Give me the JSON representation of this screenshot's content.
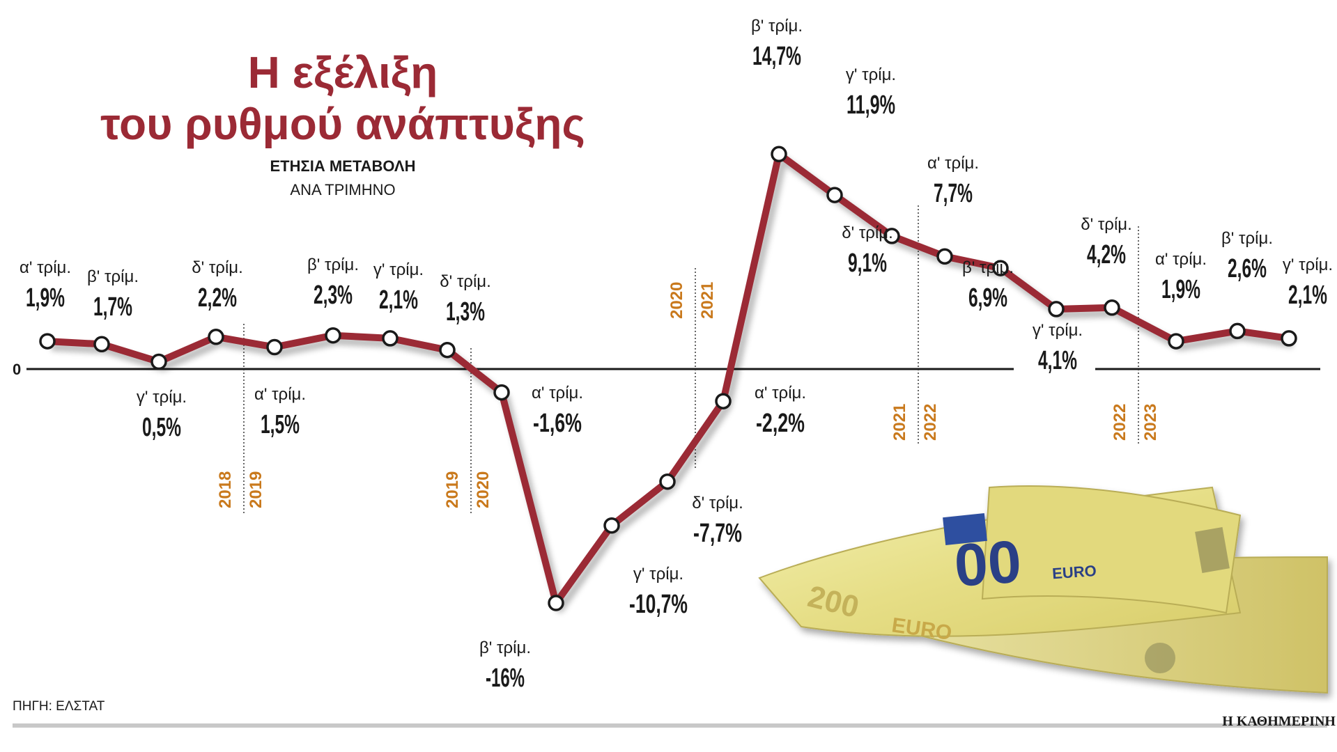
{
  "header": {
    "title_line1": "Η εξέλιξη",
    "title_line2": "του ρυθμού ανάπτυξης",
    "subtitle_line1": "ΕΤΗΣΙΑ ΜΕΤΑΒΟΛΗ",
    "subtitle_line2": "ΑΝΑ ΤΡΙΜΗΝΟ"
  },
  "footer": {
    "source": "ΠΗΓΗ: ΕΛΣΤΑΤ",
    "brand": "Η ΚΑΘΗΜΕΡΙΝΗ"
  },
  "colors": {
    "line": "#9b2a35",
    "title": "#9b2a35",
    "year": "#c9791c",
    "axis": "#1a1a1a"
  },
  "chart_data": {
    "type": "line",
    "title": "Η εξέλιξη του ρυθμού ανάπτυξης",
    "subtitle": "ΕΤΗΣΙΑ ΜΕΤΑΒΟΛΗ ΑΝΑ ΤΡΙΜΗΝΟ",
    "zero_label": "0",
    "grid": false,
    "points": [
      {
        "quarter": "α' τρίμ.",
        "value": 1.9,
        "label": "1,9%"
      },
      {
        "quarter": "β' τρίμ.",
        "value": 1.7,
        "label": "1,7%"
      },
      {
        "quarter": "γ' τρίμ.",
        "value": 0.5,
        "label": "0,5%"
      },
      {
        "quarter": "δ' τρίμ.",
        "value": 2.2,
        "label": "2,2%"
      },
      {
        "quarter": "α' τρίμ.",
        "value": 1.5,
        "label": "1,5%"
      },
      {
        "quarter": "β' τρίμ.",
        "value": 2.3,
        "label": "2,3%"
      },
      {
        "quarter": "γ' τρίμ.",
        "value": 2.1,
        "label": "2,1%"
      },
      {
        "quarter": "δ' τρίμ.",
        "value": 1.3,
        "label": "1,3%"
      },
      {
        "quarter": "α' τρίμ.",
        "value": -1.6,
        "label": "-1,6%"
      },
      {
        "quarter": "β' τρίμ.",
        "value": -16,
        "label": "-16%"
      },
      {
        "quarter": "γ' τρίμ.",
        "value": -10.7,
        "label": "-10,7%"
      },
      {
        "quarter": "δ' τρίμ.",
        "value": -7.7,
        "label": "-7,7%"
      },
      {
        "quarter": "α' τρίμ.",
        "value": -2.2,
        "label": "-2,2%"
      },
      {
        "quarter": "β' τρίμ.",
        "value": 14.7,
        "label": "14,7%"
      },
      {
        "quarter": "γ' τρίμ.",
        "value": 11.9,
        "label": "11,9%"
      },
      {
        "quarter": "δ' τρίμ.",
        "value": 9.1,
        "label": "9,1%"
      },
      {
        "quarter": "α' τρίμ.",
        "value": 7.7,
        "label": "7,7%"
      },
      {
        "quarter": "β' τρίμ.",
        "value": 6.9,
        "label": "6,9%"
      },
      {
        "quarter": "γ' τρίμ.",
        "value": 4.1,
        "label": "4,1%"
      },
      {
        "quarter": "δ' τρίμ.",
        "value": 4.2,
        "label": "4,2%"
      },
      {
        "quarter": "α' τρίμ.",
        "value": 1.9,
        "label": "1,9%"
      },
      {
        "quarter": "β' τρίμ.",
        "value": 2.6,
        "label": "2,6%"
      },
      {
        "quarter": "γ' τρίμ.",
        "value": 2.1,
        "label": "2,1%"
      }
    ],
    "year_boundaries": [
      {
        "after_index": 3,
        "left": "2018",
        "right": "2019"
      },
      {
        "after_index": 7,
        "left": "2019",
        "right": "2020"
      },
      {
        "after_index": 11,
        "left": "2020",
        "right": "2021"
      },
      {
        "after_index": 15,
        "left": "2021",
        "right": "2022"
      },
      {
        "after_index": 19,
        "left": "2022",
        "right": "2023"
      }
    ]
  }
}
